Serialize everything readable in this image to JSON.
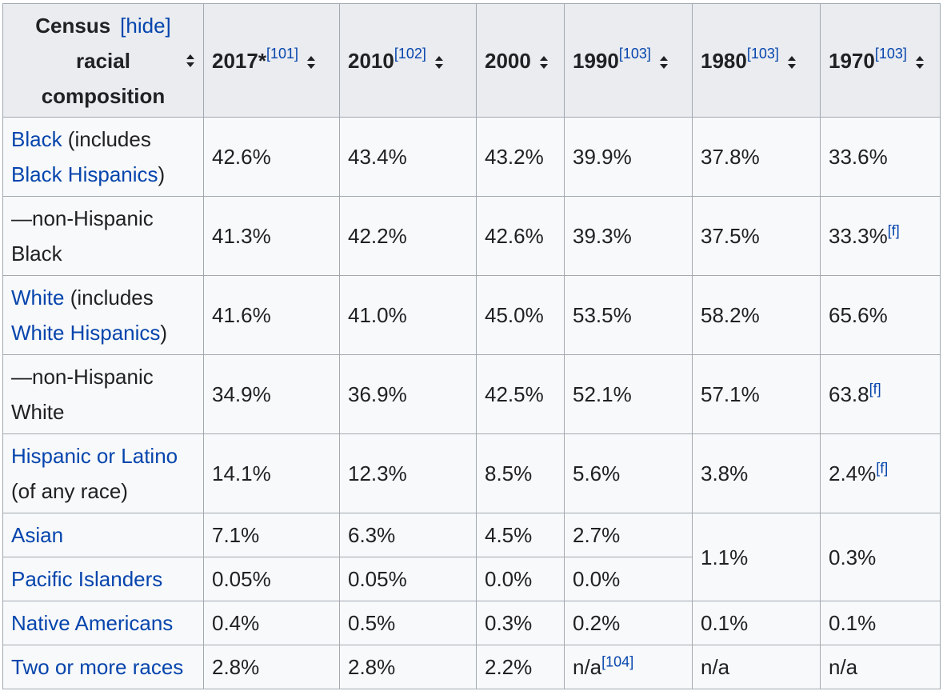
{
  "header": {
    "col_label_line1": "Census",
    "hide_label": "[hide]",
    "col_label_line2": "racial",
    "col_label_line3": "composition",
    "years": [
      {
        "year": "2017*",
        "ref": "[101]"
      },
      {
        "year": "2010",
        "ref": "[102]"
      },
      {
        "year": "2000",
        "ref": ""
      },
      {
        "year": "1990",
        "ref": "[103]"
      },
      {
        "year": "1980",
        "ref": "[103]"
      },
      {
        "year": "1970",
        "ref": "[103]"
      }
    ]
  },
  "rows": [
    {
      "link": "Black",
      "text1": " (includes",
      "link2": "Black Hispanics",
      "text2": ")",
      "values": [
        "42.6%",
        "43.4%",
        "43.2%",
        "39.9%",
        "37.8%",
        "33.6%"
      ]
    },
    {
      "text1": "—non-Hispanic",
      "text2": "Black",
      "values": [
        "41.3%",
        "42.2%",
        "42.6%",
        "39.3%",
        "37.5%",
        "33.3%"
      ],
      "note_1970": "[f]"
    },
    {
      "link": "White",
      "text1": " (includes",
      "link2": "White Hispanics",
      "text2": ")",
      "values": [
        "41.6%",
        "41.0%",
        "45.0%",
        "53.5%",
        "58.2%",
        "65.6%"
      ]
    },
    {
      "text1": "—non-Hispanic",
      "text2": "White",
      "values": [
        "34.9%",
        "36.9%",
        "42.5%",
        "52.1%",
        "57.1%",
        "63.8"
      ],
      "note_1970": "[f]"
    },
    {
      "link": "Hispanic or Latino",
      "text2": "(of any race)",
      "values": [
        "14.1%",
        "12.3%",
        "8.5%",
        "5.6%",
        "3.8%",
        "2.4%"
      ],
      "note_1970": "[f]"
    },
    {
      "link": "Asian",
      "values": [
        "7.1%",
        "6.3%",
        "4.5%",
        "2.7%"
      ]
    },
    {
      "link": "Pacific Islanders",
      "values": [
        "0.05%",
        "0.05%",
        "0.0%",
        "0.0%"
      ]
    },
    {
      "link": "Native Americans",
      "values": [
        "0.4%",
        "0.5%",
        "0.3%",
        "0.2%",
        "0.1%",
        "0.1%"
      ]
    },
    {
      "link": "Two or more races",
      "values": [
        "2.8%",
        "2.8%",
        "2.2%",
        "n/a",
        "n/a",
        "n/a"
      ],
      "note_1990": "[104]"
    }
  ],
  "merged": {
    "v1980": "1.1%",
    "v1970": "0.3%"
  }
}
